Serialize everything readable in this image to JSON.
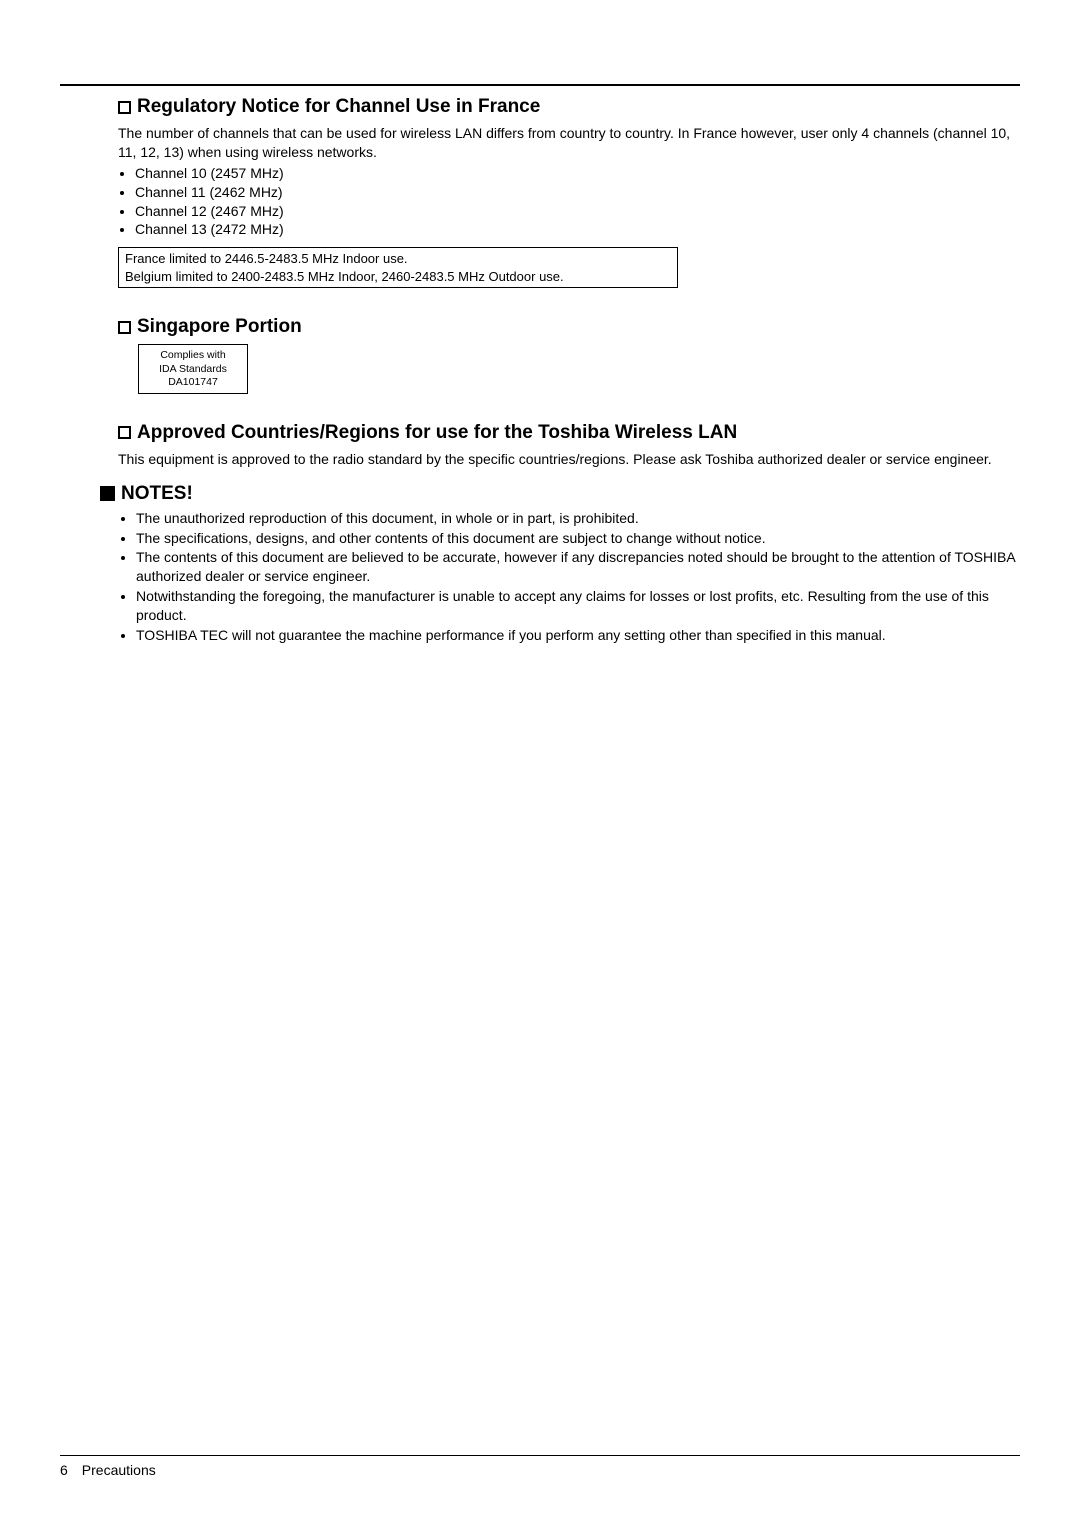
{
  "page": {
    "number": "6",
    "footer_label": "Precautions"
  },
  "section_france": {
    "title": "Regulatory Notice for Channel Use in France",
    "intro": "The number of channels that can be used for wireless LAN differs from country to country. In France however, user only 4 channels (channel 10, 11, 12, 13) when using wireless networks.",
    "bullets": [
      "Channel 10 (2457 MHz)",
      "Channel 11 (2462 MHz)",
      "Channel 12 (2467 MHz)",
      "Channel 13 (2472 MHz)"
    ],
    "box_lines": [
      "France limited to 2446.5-2483.5 MHz Indoor use.",
      "Belgium limited to 2400-2483.5 MHz Indoor, 2460-2483.5 MHz Outdoor use."
    ]
  },
  "section_singapore": {
    "title": "Singapore Portion",
    "box_lines": [
      "Complies with",
      "IDA Standards",
      "DA101747"
    ]
  },
  "section_approved": {
    "title": "Approved Countries/Regions for use for the Toshiba Wireless LAN",
    "body": "This equipment is approved to the radio standard by the specific countries/regions. Please ask Toshiba authorized dealer or service engineer."
  },
  "section_notes": {
    "title": "NOTES!",
    "items": [
      "The unauthorized reproduction of this document, in whole or in part, is prohibited.",
      "The specifications, designs, and other contents of this document are subject to change without notice.",
      "The contents of this document are believed to be accurate, however if any discrepancies noted should be brought to the attention of TOSHIBA authorized dealer or service engineer.",
      "Notwithstanding the foregoing, the manufacturer is unable to accept any claims for losses or lost profits, etc. Resulting from the use of this product.",
      "TOSHIBA TEC will not guarantee the machine performance if you perform any setting other than specified in this manual."
    ]
  }
}
